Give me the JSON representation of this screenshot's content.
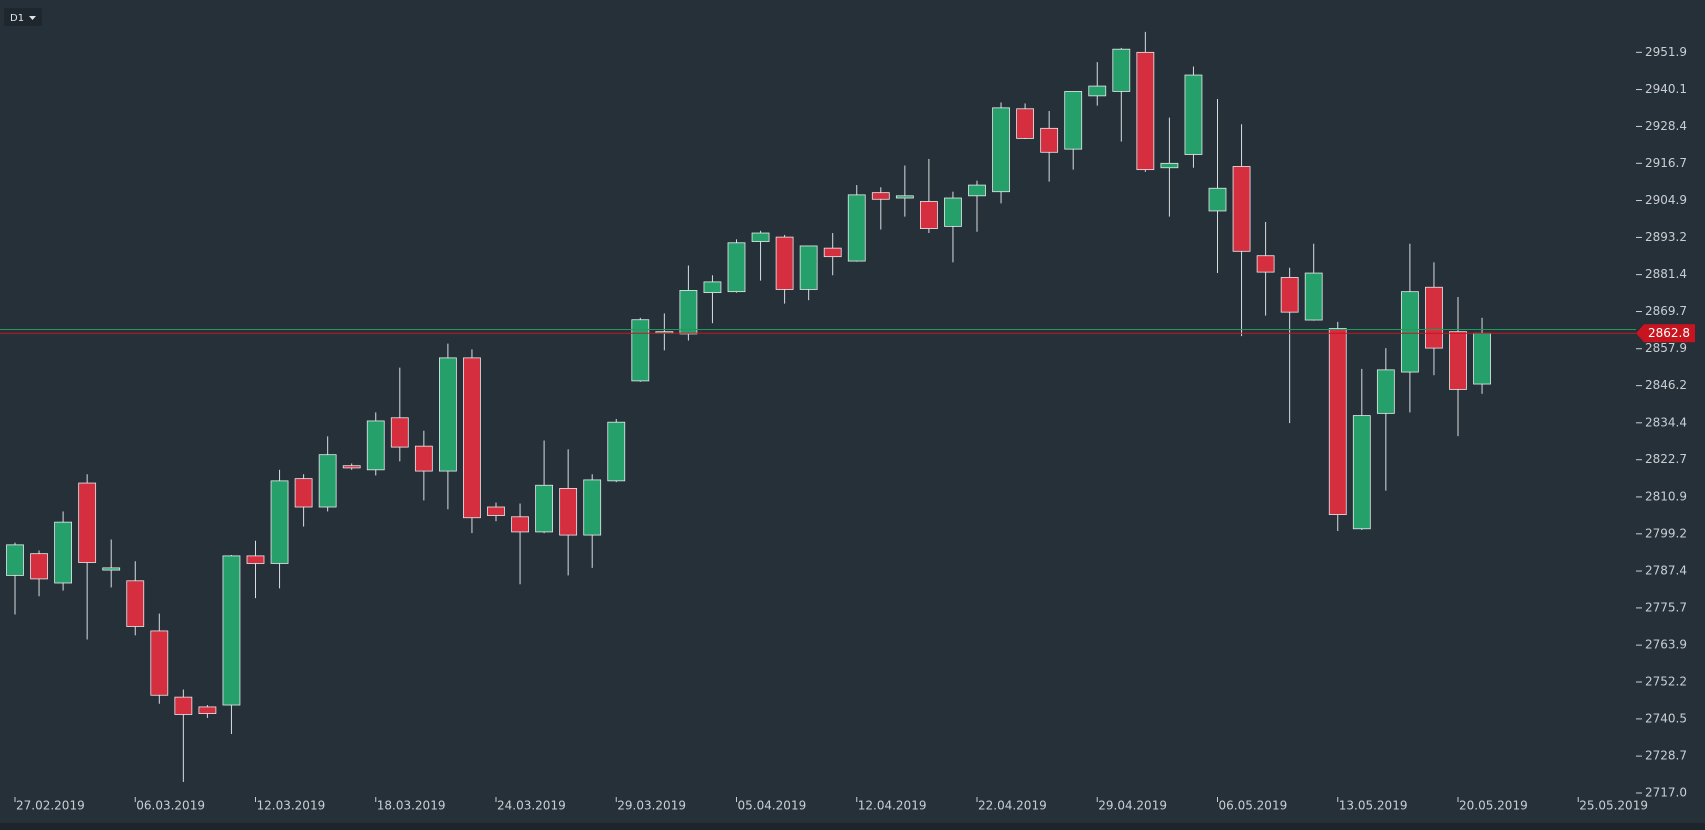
{
  "chart_data": {
    "type": "candlestick",
    "timeframe": "D1",
    "categories": [
      "27.02.2019",
      null,
      null,
      null,
      null,
      "06.03.2019",
      null,
      null,
      null,
      null,
      "12.03.2019",
      null,
      null,
      null,
      null,
      "18.03.2019",
      null,
      null,
      null,
      null,
      "24.03.2019",
      null,
      null,
      null,
      null,
      "29.03.2019",
      null,
      null,
      null,
      null,
      "05.04.2019",
      null,
      null,
      null,
      null,
      "12.04.2019",
      null,
      null,
      null,
      null,
      "22.04.2019",
      null,
      null,
      null,
      null,
      "29.04.2019",
      null,
      null,
      null,
      null,
      "06.05.2019",
      null,
      null,
      null,
      null,
      "13.05.2019",
      null,
      null,
      null,
      null,
      "20.05.2019",
      null,
      null,
      null,
      null,
      "25.05.2019"
    ],
    "open": [
      2786.0,
      2792.9,
      2783.6,
      2815.3,
      2787.7,
      2784.3,
      2768.4,
      2747.4,
      2744.3,
      2744.9,
      2792.2,
      2789.8,
      2816.7,
      2807.7,
      2820.8,
      2819.5,
      2836.0,
      2827.0,
      2819.1,
      2855.0,
      2807.7,
      2804.6,
      2799.8,
      2813.6,
      2798.8,
      2816.0,
      2847.7,
      2862.9,
      2862.6,
      2875.7,
      2876.0,
      2891.9,
      2893.3,
      2876.7,
      2889.8,
      2885.7,
      2907.4,
      2905.7,
      2904.6,
      2896.7,
      2906.4,
      2907.7,
      2934.0,
      2927.8,
      2921.2,
      2938.1,
      2939.5,
      2951.9,
      2915.3,
      2919.5,
      2901.6,
      2915.7,
      2887.4,
      2880.5,
      2867.0,
      2864.3,
      2800.8,
      2837.4,
      2850.5,
      2877.4,
      2863.3,
      2846.7,
      null,
      null,
      null,
      null
    ],
    "high": [
      2796.4,
      2793.9,
      2806.3,
      2818.1,
      2797.4,
      2790.5,
      2773.9,
      2749.8,
      2744.9,
      2792.5,
      2797.0,
      2819.5,
      2818.1,
      2830.1,
      2821.5,
      2837.7,
      2851.9,
      2831.9,
      2859.5,
      2857.7,
      2809.1,
      2808.8,
      2828.8,
      2826.0,
      2818.1,
      2835.6,
      2867.7,
      2869.1,
      2884.3,
      2881.2,
      2892.6,
      2895.3,
      2894.0,
      2890.5,
      2894.6,
      2909.8,
      2909.1,
      2916.0,
      2918.1,
      2907.7,
      2911.2,
      2936.0,
      2935.7,
      2933.3,
      2939.5,
      2948.8,
      2953.3,
      2958.4,
      2931.2,
      2947.4,
      2937.1,
      2929.1,
      2898.1,
      2883.6,
      2891.2,
      2866.4,
      2851.5,
      2858.1,
      2891.2,
      2885.3,
      2874.3,
      2867.7,
      null,
      null,
      null,
      null
    ],
    "low": [
      2773.6,
      2779.4,
      2781.2,
      2765.7,
      2782.2,
      2767.0,
      2745.3,
      2720.5,
      2740.8,
      2735.7,
      2778.8,
      2781.9,
      2801.5,
      2806.3,
      2819.5,
      2817.7,
      2822.2,
      2809.8,
      2807.0,
      2799.4,
      2803.2,
      2783.2,
      2799.4,
      2786.0,
      2788.4,
      2815.6,
      2847.4,
      2857.4,
      2860.5,
      2866.0,
      2875.7,
      2879.5,
      2872.2,
      2873.3,
      2881.2,
      2885.5,
      2895.7,
      2899.8,
      2894.6,
      2885.3,
      2895.0,
      2904.0,
      2924.4,
      2910.9,
      2914.7,
      2935.0,
      2923.6,
      2914.0,
      2899.8,
      2915.3,
      2881.9,
      2861.9,
      2868.4,
      2834.3,
      2866.8,
      2800.1,
      2800.4,
      2812.9,
      2837.7,
      2849.5,
      2830.2,
      2843.6,
      null,
      null,
      null,
      null
    ],
    "close": [
      2795.7,
      2784.9,
      2802.9,
      2790.1,
      2788.4,
      2769.8,
      2748.0,
      2741.9,
      2742.2,
      2792.2,
      2789.8,
      2816.0,
      2807.7,
      2824.3,
      2820.1,
      2835.0,
      2826.7,
      2819.1,
      2855.0,
      2804.3,
      2805.0,
      2799.8,
      2814.6,
      2798.8,
      2816.3,
      2834.6,
      2867.1,
      2863.3,
      2876.4,
      2879.1,
      2891.5,
      2894.6,
      2876.7,
      2890.5,
      2887.1,
      2906.7,
      2905.3,
      2906.4,
      2896.0,
      2905.7,
      2909.8,
      2934.3,
      2924.6,
      2920.2,
      2939.5,
      2941.2,
      2952.9,
      2914.7,
      2916.7,
      2944.7,
      2908.8,
      2888.8,
      2882.2,
      2869.5,
      2881.9,
      2805.3,
      2836.7,
      2851.2,
      2876.0,
      2858.1,
      2845.0,
      2862.8,
      null,
      null,
      null,
      null
    ],
    "up_color": "#26a06b",
    "down_color": "#d52f3f",
    "ask": 2864.0,
    "ask_color": "#1f9a63",
    "bid": 2862.8,
    "bid_color": "#c8141f",
    "ylim": [
      2717.0,
      2968.5
    ],
    "yticks": [
      {
        "value": 2717.0,
        "label": "2717.0"
      },
      2728.7,
      2740.5,
      2752.2,
      2763.9,
      2775.7,
      2787.4,
      2799.2,
      2810.9,
      2822.7,
      2834.4,
      2846.2,
      2857.9,
      2869.7,
      2881.4,
      2893.2,
      2904.9,
      2916.7,
      2928.4,
      2940.1,
      2951.9
    ]
  }
}
